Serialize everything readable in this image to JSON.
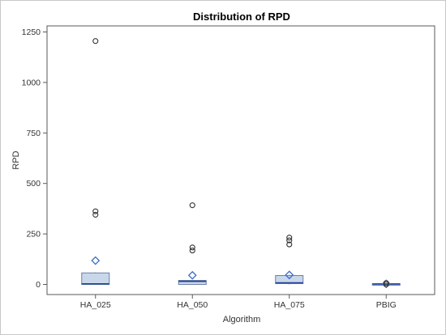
{
  "chart_data": {
    "type": "box",
    "title": "Distribution of RPD",
    "xlabel": "Algorithm",
    "ylabel": "RPD",
    "ylim": [
      -20,
      1270
    ],
    "yticks": [
      0,
      250,
      500,
      750,
      1000,
      1250
    ],
    "grid": false,
    "legend": "none",
    "categories": [
      "HA_025",
      "HA_050",
      "HA_075",
      "PBIG"
    ],
    "boxes": [
      {
        "category": "HA_025",
        "q1": 0,
        "median": 3,
        "q3": 57,
        "whisker_low": 0,
        "whisker_high": 60,
        "mean": 118,
        "outliers": [
          1205,
          362,
          345
        ]
      },
      {
        "category": "HA_050",
        "q1": 0,
        "median": 15,
        "q3": 20,
        "whisker_low": 0,
        "whisker_high": 22,
        "mean": 45,
        "outliers": [
          392,
          183,
          168
        ]
      },
      {
        "category": "HA_075",
        "q1": 4,
        "median": 8,
        "q3": 44,
        "whisker_low": 0,
        "whisker_high": 48,
        "mean": 47,
        "outliers": [
          232,
          218,
          198
        ]
      },
      {
        "category": "PBIG",
        "q1": 0,
        "median": 2,
        "q3": 4,
        "whisker_low": 0,
        "whisker_high": 6,
        "mean": 3,
        "outliers": [
          7,
          0
        ]
      }
    ],
    "colors": {
      "box_fill": "#c9d7ea",
      "box_stroke": "#6b7fa8",
      "median": "#1f3f9a",
      "mean_marker": "#3c6bc6",
      "outlier": "#333333",
      "axis": "#5a5a5a"
    }
  }
}
